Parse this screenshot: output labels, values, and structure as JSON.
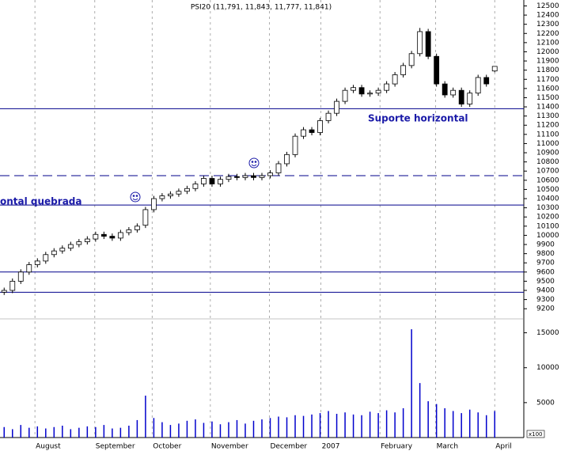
{
  "chart_data": {
    "type": "candlestick",
    "title": "PSI20 (11,791, 11,843, 11,777, 11,841)",
    "x": [
      0,
      1,
      2,
      3,
      4,
      5,
      6,
      7,
      8,
      9,
      10,
      11,
      12,
      13,
      14,
      15,
      16,
      17,
      18,
      19,
      20,
      21,
      22,
      23,
      24,
      25,
      26,
      27,
      28,
      29,
      30,
      31,
      32,
      33,
      34,
      35,
      36,
      37,
      38,
      39,
      40,
      41,
      42,
      43,
      44,
      45,
      46,
      47,
      48,
      49,
      50,
      51,
      52,
      53,
      54,
      55,
      56,
      57,
      58,
      59
    ],
    "open": [
      9380,
      9400,
      9500,
      9600,
      9680,
      9720,
      9790,
      9830,
      9860,
      9900,
      9930,
      9960,
      10010,
      9990,
      9970,
      10030,
      10060,
      10110,
      10280,
      10400,
      10430,
      10450,
      10480,
      10510,
      10560,
      10620,
      10560,
      10610,
      10640,
      10630,
      10650,
      10630,
      10650,
      10680,
      10780,
      10880,
      11080,
      11150,
      11120,
      11250,
      11330,
      11460,
      11580,
      11610,
      11540,
      11550,
      11580,
      11650,
      11750,
      11850,
      11980,
      12220,
      11950,
      11650,
      11530,
      11580,
      11430,
      11550,
      11720,
      11791
    ],
    "high": [
      9430,
      9530,
      9630,
      9710,
      9750,
      9820,
      9860,
      9890,
      9930,
      9960,
      9990,
      10040,
      10040,
      10020,
      10060,
      10090,
      10130,
      10310,
      10430,
      10460,
      10480,
      10510,
      10540,
      10590,
      10650,
      10650,
      10640,
      10670,
      10670,
      10680,
      10680,
      10680,
      10710,
      10810,
      10910,
      11110,
      11180,
      11180,
      11280,
      11360,
      11490,
      11610,
      11640,
      11640,
      11580,
      11610,
      11680,
      11780,
      11880,
      12010,
      12260,
      12250,
      11980,
      11680,
      11610,
      11610,
      11580,
      11750,
      11750,
      11843
    ],
    "low": [
      9350,
      9370,
      9470,
      9570,
      9650,
      9690,
      9760,
      9800,
      9830,
      9870,
      9900,
      9930,
      9960,
      9940,
      9940,
      10000,
      10030,
      10080,
      10250,
      10370,
      10400,
      10420,
      10450,
      10480,
      10530,
      10530,
      10530,
      10580,
      10600,
      10600,
      10600,
      10600,
      10620,
      10650,
      10750,
      10850,
      11050,
      11090,
      11090,
      11220,
      11300,
      11430,
      11550,
      11510,
      11510,
      11520,
      11550,
      11620,
      11720,
      11820,
      11950,
      11920,
      11620,
      11500,
      11500,
      11400,
      11400,
      11520,
      11620,
      11777
    ],
    "close": [
      9400,
      9500,
      9600,
      9680,
      9720,
      9790,
      9830,
      9860,
      9900,
      9930,
      9960,
      10010,
      9990,
      9970,
      10030,
      10060,
      10100,
      10280,
      10400,
      10430,
      10450,
      10480,
      10510,
      10560,
      10620,
      10560,
      10610,
      10640,
      10630,
      10650,
      10630,
      10650,
      10680,
      10780,
      10880,
      11080,
      11150,
      11120,
      11250,
      11330,
      11460,
      11580,
      11610,
      11540,
      11550,
      11580,
      11650,
      11750,
      11850,
      11980,
      12220,
      11950,
      11650,
      11530,
      11580,
      11430,
      11550,
      11720,
      11650,
      11841
    ],
    "up_color": "#ffffff",
    "down_color": "#000000",
    "xlim": [
      -0.5,
      62.5
    ],
    "xticks": [
      {
        "value": 3.7,
        "label": "August"
      },
      {
        "value": 10.9,
        "label": "September"
      },
      {
        "value": 17.8,
        "label": "October"
      },
      {
        "value": 24.8,
        "label": "November"
      },
      {
        "value": 31.9,
        "label": "December"
      },
      {
        "value": 38.1,
        "label": "2007"
      },
      {
        "value": 45.2,
        "label": "February"
      },
      {
        "value": 51.9,
        "label": "March"
      },
      {
        "value": 59,
        "label": "April"
      }
    ],
    "ylim": [
      9150,
      12530
    ],
    "yticks": [
      9200,
      9300,
      9400,
      9500,
      9600,
      9700,
      9800,
      9900,
      10000,
      10100,
      10200,
      10300,
      10400,
      10500,
      10600,
      10700,
      10800,
      10900,
      11000,
      11100,
      11200,
      11300,
      11400,
      11500,
      11600,
      11700,
      11800,
      11900,
      12000,
      12100,
      12200,
      12300,
      12400,
      12500
    ],
    "reference_lines": [
      {
        "value": 11380,
        "style": "solid"
      },
      {
        "value": 10650,
        "style": "dashed"
      },
      {
        "value": 10330,
        "style": "solid"
      },
      {
        "value": 9600,
        "style": "solid"
      },
      {
        "value": 9380,
        "style": "solid"
      }
    ],
    "reference_color": "#00008b",
    "annotations": [
      "Suporte horizontal",
      "ontal quebrada"
    ],
    "volume": {
      "values": [
        1500,
        1200,
        1800,
        1400,
        1600,
        1300,
        1500,
        1700,
        1200,
        1400,
        1600,
        1500,
        1800,
        1300,
        1400,
        1700,
        2500,
        6000,
        2800,
        2200,
        1800,
        2000,
        2400,
        2600,
        2100,
        2300,
        1900,
        2200,
        2500,
        2000,
        2400,
        2600,
        2800,
        3000,
        2900,
        3200,
        3100,
        3300,
        3500,
        3800,
        3400,
        3600,
        3300,
        3200,
        3700,
        3500,
        3900,
        3600,
        4200,
        15500,
        7800,
        5200,
        4800,
        4200,
        3800,
        3500,
        4000,
        3600,
        3200,
        3800
      ],
      "color": "#0000cc",
      "ylim": [
        0,
        16200
      ],
      "yticks": [
        5000,
        10000,
        15000
      ],
      "unit_label": "x100"
    }
  }
}
